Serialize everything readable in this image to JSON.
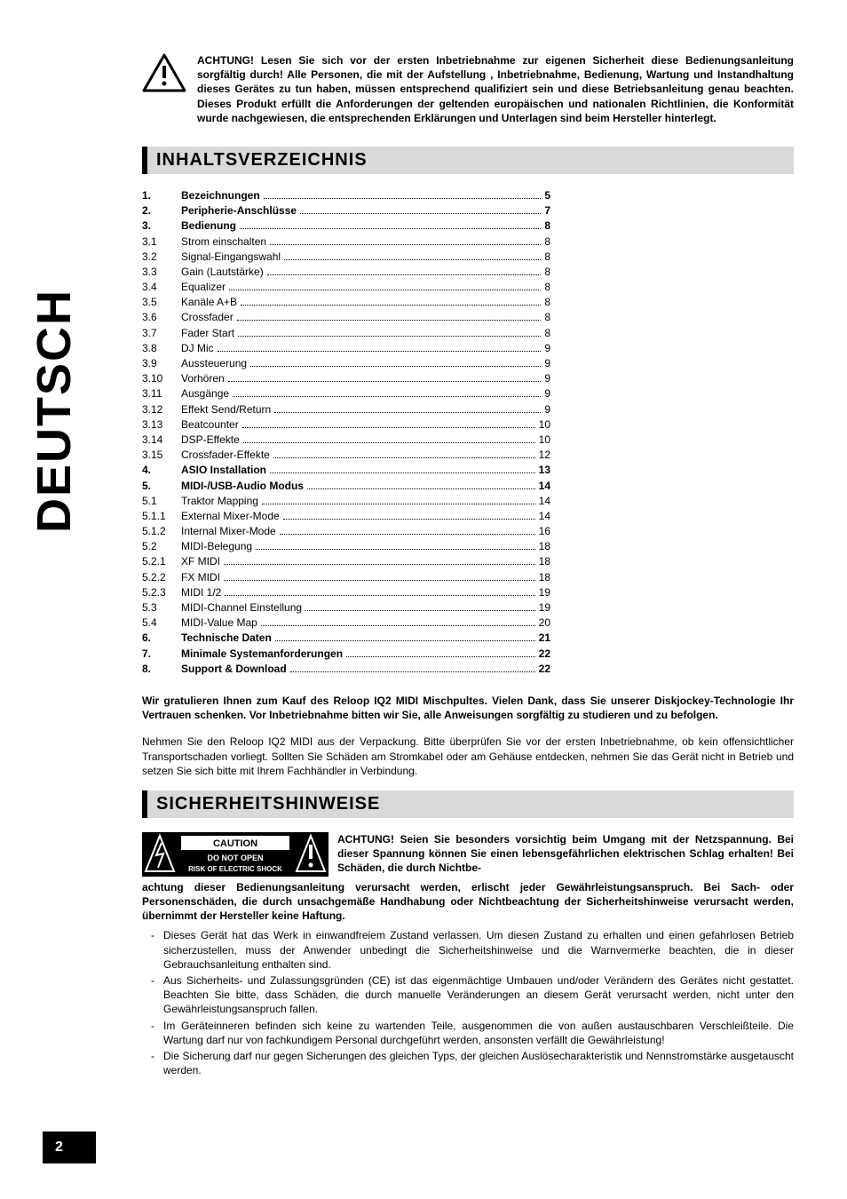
{
  "side_label": "DEUTSCH",
  "page_number": "2",
  "top_warning": "ACHTUNG! Lesen Sie sich vor der ersten Inbetriebnahme zur eigenen Sicherheit diese Bedienungsanleitung sorgfältig durch! Alle Personen, die mit der Aufstellung , Inbetriebnahme, Bedienung, Wartung und Instandhaltung dieses Gerätes zu tun haben, müssen entsprechend qualifiziert sein und diese Betriebsanleitung genau beachten. Dieses Produkt erfüllt die Anforderungen der geltenden europäischen und nationalen Richtlinien, die Konformität wurde nachgewiesen, die entsprechenden Erklärungen und Unterlagen sind beim Hersteller hinterlegt.",
  "section_toc": "INHALTSVERZEICHNIS",
  "toc": [
    {
      "num": "1.",
      "label": "Bezeichnungen",
      "page": "5",
      "bold": true
    },
    {
      "num": "2.",
      "label": "Peripherie-Anschlüsse",
      "page": "7",
      "bold": true
    },
    {
      "num": "3.",
      "label": "Bedienung",
      "page": "8",
      "bold": true
    },
    {
      "num": "3.1",
      "label": "Strom einschalten",
      "page": "8",
      "bold": false
    },
    {
      "num": "3.2",
      "label": "Signal-Eingangswahl",
      "page": "8",
      "bold": false
    },
    {
      "num": "3.3",
      "label": "Gain (Lautstärke)",
      "page": "8",
      "bold": false
    },
    {
      "num": "3.4",
      "label": "Equalizer",
      "page": "8",
      "bold": false
    },
    {
      "num": "3.5",
      "label": "Kanäle A+B",
      "page": "8",
      "bold": false
    },
    {
      "num": "3.6",
      "label": "Crossfader",
      "page": "8",
      "bold": false
    },
    {
      "num": "3.7",
      "label": "Fader Start",
      "page": "8",
      "bold": false
    },
    {
      "num": "3.8",
      "label": "DJ Mic",
      "page": "9",
      "bold": false
    },
    {
      "num": "3.9",
      "label": "Aussteuerung",
      "page": "9",
      "bold": false
    },
    {
      "num": "3.10",
      "label": "Vorhören",
      "page": "9",
      "bold": false
    },
    {
      "num": "3.11",
      "label": "Ausgänge",
      "page": "9",
      "bold": false
    },
    {
      "num": "3.12",
      "label": "Effekt Send/Return",
      "page": "9",
      "bold": false
    },
    {
      "num": "3.13",
      "label": "Beatcounter",
      "page": "10",
      "bold": false
    },
    {
      "num": "3.14",
      "label": "DSP-Effekte",
      "page": "10",
      "bold": false
    },
    {
      "num": "3.15",
      "label": "Crossfader-Effekte",
      "page": "12",
      "bold": false
    },
    {
      "num": "4.",
      "label": "ASIO Installation",
      "page": "13",
      "bold": true
    },
    {
      "num": "5.",
      "label": "MIDI-/USB-Audio Modus",
      "page": "14",
      "bold": true
    },
    {
      "num": "5.1",
      "label": "Traktor Mapping",
      "page": "14",
      "bold": false
    },
    {
      "num": "5.1.1",
      "label": "External Mixer-Mode",
      "page": "14",
      "bold": false
    },
    {
      "num": "5.1.2",
      "label": "Internal Mixer-Mode",
      "page": "16",
      "bold": false
    },
    {
      "num": "5.2",
      "label": "MIDI-Belegung",
      "page": "18",
      "bold": false
    },
    {
      "num": "5.2.1",
      "label": "XF MIDI",
      "page": "18",
      "bold": false
    },
    {
      "num": "5.2.2",
      "label": "FX MIDI",
      "page": "18",
      "bold": false
    },
    {
      "num": "5.2.3",
      "label": "MIDI 1/2",
      "page": "19",
      "bold": false
    },
    {
      "num": "5.3",
      "label": "MIDI-Channel Einstellung",
      "page": "19",
      "bold": false
    },
    {
      "num": "5.4",
      "label": "MIDI-Value Map",
      "page": "20",
      "bold": false
    },
    {
      "num": "6.",
      "label": "Technische Daten",
      "page": "21",
      "bold": true
    },
    {
      "num": "7.",
      "label": "Minimale Systemanforderungen",
      "page": "22",
      "bold": true
    },
    {
      "num": "8.",
      "label": "Support & Download",
      "page": "22",
      "bold": true
    }
  ],
  "congrats": "Wir gratulieren Ihnen zum Kauf des Reloop IQ2 MIDI Mischpultes. Vielen Dank, dass Sie unserer Diskjockey-Technologie Ihr Vertrauen schenken. Vor Inbetriebnahme bitten wir Sie, alle Anweisungen sorgfältig zu studieren und zu befolgen.",
  "unpack": "Nehmen Sie den Reloop IQ2 MIDI aus der Verpackung. Bitte überprüfen Sie vor der ersten Inbetriebnahme, ob kein offensichtlicher Transportschaden vorliegt. Sollten Sie Schäden am Stromkabel oder am Gehäuse entdecken, nehmen Sie das Gerät nicht in Betrieb und setzen Sie sich bitte mit Ihrem Fachhändler in Verbindung.",
  "section_safety": "SICHERHEITSHINWEISE",
  "caution_box": {
    "line1": "CAUTION",
    "line2": "DO NOT OPEN",
    "line3": "RISK OF ELECTRIC SHOCK"
  },
  "safety_lead": "ACHTUNG! Seien Sie besonders vorsichtig beim Umgang mit der Netzspannung. Bei dieser Spannung können Sie einen lebensgefährlichen elektrischen Schlag erhalten! Bei Schäden, die durch Nichtbe-",
  "safety_lead_cont": "achtung dieser Bedienungsanleitung verursacht werden, erlischt jeder Gewährleistungsanspruch. Bei Sach- oder Personenschäden, die durch unsachgemäße Handhabung oder Nichtbeachtung der Sicherheitshinweise verursacht werden, übernimmt der Hersteller keine Haftung.",
  "bullets": [
    "Dieses Gerät hat das Werk in einwandfreiem Zustand verlassen. Um diesen Zustand zu erhalten und einen gefahrlosen Betrieb sicherzustellen, muss der Anwender unbedingt die Sicherheitshinweise und die Warnvermerke beachten, die in dieser Gebrauchsanleitung enthalten sind.",
    "Aus Sicherheits- und Zulassungsgründen (CE) ist das eigenmächtige Umbauen und/oder Verändern des Gerätes nicht gestattet. Beachten Sie bitte, dass Schäden, die durch manuelle Veränderungen an diesem Gerät verursacht werden, nicht unter den Gewährleistungsanspruch fallen.",
    "Im Geräteinneren befinden sich keine zu wartenden Teile, ausgenommen die von außen austauschbaren Verschleißteile. Die Wartung darf nur von fachkundigem Personal durchgeführt werden, ansonsten verfällt die Gewährleistung!",
    "Die Sicherung darf nur gegen Sicherungen des gleichen Typs, der gleichen Auslösecharakteristik und Nennstromstärke ausgetauscht werden."
  ]
}
